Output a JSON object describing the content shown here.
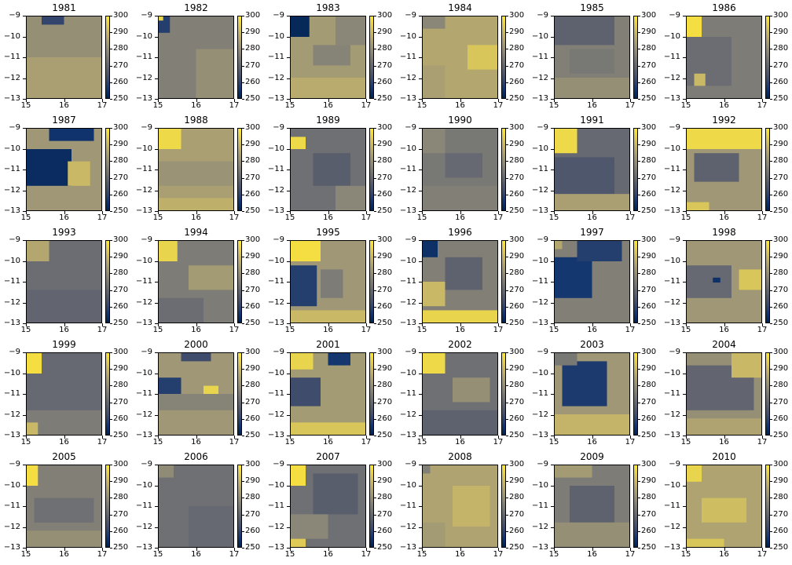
{
  "chart_data": {
    "type": "heatmap",
    "colormap": "cividis",
    "panel_grid": {
      "rows": 5,
      "cols": 6
    },
    "xlim": [
      15,
      17
    ],
    "ylim": [
      -13,
      -9
    ],
    "x_ticks": [
      "15",
      "16",
      "17"
    ],
    "y_ticks": [
      "−9",
      "−10",
      "−11",
      "−12",
      "−13"
    ],
    "colorbar": {
      "range": [
        250,
        300
      ],
      "ticks": [
        "300",
        "290",
        "280",
        "270",
        "260",
        "250"
      ]
    },
    "panels": [
      {
        "year": "1981",
        "base": 280,
        "patches": [
          [
            0.2,
            0.0,
            0.3,
            0.1,
            260
          ],
          [
            0.0,
            0.5,
            1.0,
            0.5,
            284
          ]
        ]
      },
      {
        "year": "1982",
        "base": 276,
        "patches": [
          [
            0.0,
            0.0,
            0.15,
            0.2,
            258
          ],
          [
            0.0,
            0.0,
            0.06,
            0.05,
            296
          ],
          [
            0.5,
            0.4,
            0.5,
            0.6,
            280
          ]
        ]
      },
      {
        "year": "1983",
        "base": 283,
        "patches": [
          [
            0.0,
            0.0,
            0.25,
            0.25,
            252
          ],
          [
            0.6,
            0.0,
            0.4,
            0.35,
            278
          ],
          [
            0.3,
            0.35,
            0.5,
            0.25,
            277
          ],
          [
            0.0,
            0.75,
            1.0,
            0.25,
            287
          ]
        ]
      },
      {
        "year": "1984",
        "base": 286,
        "patches": [
          [
            0.0,
            0.0,
            0.3,
            0.15,
            278
          ],
          [
            0.6,
            0.35,
            0.4,
            0.3,
            293
          ],
          [
            0.0,
            0.6,
            0.3,
            0.4,
            284
          ]
        ]
      },
      {
        "year": "1985",
        "base": 276,
        "patches": [
          [
            0.0,
            0.0,
            0.8,
            0.35,
            268
          ],
          [
            0.2,
            0.4,
            0.6,
            0.3,
            274
          ],
          [
            0.0,
            0.75,
            1.0,
            0.25,
            280
          ]
        ]
      },
      {
        "year": "1986",
        "base": 275,
        "patches": [
          [
            0.0,
            0.0,
            0.2,
            0.25,
            298
          ],
          [
            0.0,
            0.25,
            0.6,
            0.6,
            271
          ],
          [
            0.1,
            0.7,
            0.15,
            0.15,
            290
          ]
        ]
      },
      {
        "year": "1987",
        "base": 282,
        "patches": [
          [
            0.0,
            0.25,
            0.6,
            0.45,
            253
          ],
          [
            0.3,
            0.0,
            0.6,
            0.15,
            255
          ],
          [
            0.55,
            0.4,
            0.3,
            0.3,
            290
          ]
        ]
      },
      {
        "year": "1988",
        "base": 284,
        "patches": [
          [
            0.0,
            0.0,
            0.3,
            0.25,
            297
          ],
          [
            0.0,
            0.4,
            1.0,
            0.3,
            281
          ],
          [
            0.0,
            0.85,
            1.0,
            0.15,
            288
          ]
        ]
      },
      {
        "year": "1989",
        "base": 272,
        "patches": [
          [
            0.0,
            0.1,
            0.2,
            0.15,
            297
          ],
          [
            0.3,
            0.3,
            0.5,
            0.4,
            267
          ],
          [
            0.6,
            0.7,
            0.4,
            0.3,
            278
          ]
        ]
      },
      {
        "year": "1990",
        "base": 274,
        "patches": [
          [
            0.0,
            0.0,
            0.3,
            0.3,
            278
          ],
          [
            0.3,
            0.3,
            0.5,
            0.3,
            270
          ],
          [
            0.0,
            0.7,
            1.0,
            0.3,
            276
          ]
        ]
      },
      {
        "year": "1991",
        "base": 270,
        "patches": [
          [
            0.0,
            0.0,
            0.3,
            0.3,
            297
          ],
          [
            0.0,
            0.35,
            0.8,
            0.45,
            265
          ],
          [
            0.0,
            0.8,
            1.0,
            0.2,
            284
          ]
        ]
      },
      {
        "year": "1992",
        "base": 282,
        "patches": [
          [
            0.0,
            0.0,
            1.0,
            0.25,
            297
          ],
          [
            0.1,
            0.3,
            0.6,
            0.35,
            268
          ],
          [
            0.0,
            0.9,
            0.3,
            0.1,
            293
          ]
        ]
      },
      {
        "year": "1993",
        "base": 271,
        "patches": [
          [
            0.0,
            0.0,
            0.3,
            0.25,
            286
          ],
          [
            0.0,
            0.6,
            1.0,
            0.4,
            269
          ]
        ]
      },
      {
        "year": "1994",
        "base": 275,
        "patches": [
          [
            0.0,
            0.0,
            0.25,
            0.25,
            296
          ],
          [
            0.4,
            0.3,
            0.6,
            0.3,
            283
          ],
          [
            0.0,
            0.7,
            0.6,
            0.3,
            271
          ]
        ]
      },
      {
        "year": "1995",
        "base": 282,
        "patches": [
          [
            0.0,
            0.0,
            0.4,
            0.25,
            298
          ],
          [
            0.0,
            0.3,
            0.35,
            0.5,
            258
          ],
          [
            0.4,
            0.35,
            0.3,
            0.35,
            275
          ],
          [
            0.0,
            0.85,
            1.0,
            0.15,
            290
          ]
        ]
      },
      {
        "year": "1996",
        "base": 276,
        "patches": [
          [
            0.0,
            0.0,
            0.2,
            0.2,
            254
          ],
          [
            0.0,
            0.5,
            0.3,
            0.3,
            290
          ],
          [
            0.0,
            0.85,
            1.0,
            0.15,
            296
          ],
          [
            0.3,
            0.2,
            0.5,
            0.4,
            268
          ]
        ]
      },
      {
        "year": "1997",
        "base": 276,
        "patches": [
          [
            0.0,
            0.2,
            0.5,
            0.5,
            256
          ],
          [
            0.3,
            0.0,
            0.6,
            0.25,
            258
          ],
          [
            0.0,
            0.0,
            0.1,
            0.1,
            286
          ]
        ]
      },
      {
        "year": "1998",
        "base": 282,
        "patches": [
          [
            0.0,
            0.3,
            0.6,
            0.4,
            270
          ],
          [
            0.7,
            0.35,
            0.3,
            0.25,
            293
          ],
          [
            0.35,
            0.45,
            0.1,
            0.06,
            254
          ]
        ]
      },
      {
        "year": "1999",
        "base": 270,
        "patches": [
          [
            0.0,
            0.0,
            0.2,
            0.25,
            298
          ],
          [
            0.0,
            0.7,
            1.0,
            0.3,
            275
          ],
          [
            0.0,
            0.85,
            0.15,
            0.15,
            290
          ]
        ]
      },
      {
        "year": "2000",
        "base": 282,
        "patches": [
          [
            0.0,
            0.3,
            0.3,
            0.2,
            258
          ],
          [
            0.3,
            0.0,
            0.4,
            0.1,
            262
          ],
          [
            0.6,
            0.4,
            0.2,
            0.15,
            296
          ],
          [
            0.0,
            0.5,
            1.0,
            0.2,
            277
          ]
        ]
      },
      {
        "year": "2001",
        "base": 283,
        "patches": [
          [
            0.0,
            0.3,
            0.4,
            0.35,
            262
          ],
          [
            0.0,
            0.0,
            0.3,
            0.2,
            296
          ],
          [
            0.5,
            0.0,
            0.3,
            0.15,
            256
          ],
          [
            0.0,
            0.85,
            1.0,
            0.15,
            293
          ]
        ]
      },
      {
        "year": "2002",
        "base": 272,
        "patches": [
          [
            0.0,
            0.0,
            0.3,
            0.25,
            297
          ],
          [
            0.4,
            0.3,
            0.5,
            0.3,
            280
          ],
          [
            0.0,
            0.7,
            1.0,
            0.3,
            268
          ]
        ]
      },
      {
        "year": "2003",
        "base": 282,
        "patches": [
          [
            0.1,
            0.1,
            0.6,
            0.55,
            257
          ],
          [
            0.0,
            0.0,
            0.3,
            0.15,
            274
          ],
          [
            0.0,
            0.75,
            1.0,
            0.25,
            289
          ]
        ]
      },
      {
        "year": "2004",
        "base": 280,
        "patches": [
          [
            0.0,
            0.15,
            0.9,
            0.55,
            269
          ],
          [
            0.6,
            0.0,
            0.4,
            0.3,
            290
          ],
          [
            0.0,
            0.8,
            1.0,
            0.2,
            285
          ]
        ]
      },
      {
        "year": "2005",
        "base": 276,
        "patches": [
          [
            0.0,
            0.0,
            0.15,
            0.25,
            298
          ],
          [
            0.1,
            0.4,
            0.8,
            0.3,
            272
          ],
          [
            0.0,
            0.8,
            1.0,
            0.2,
            280
          ]
        ]
      },
      {
        "year": "2006",
        "base": 272,
        "patches": [
          [
            0.0,
            0.0,
            0.2,
            0.15,
            279
          ],
          [
            0.4,
            0.5,
            0.6,
            0.5,
            270
          ]
        ]
      },
      {
        "year": "2007",
        "base": 272,
        "patches": [
          [
            0.0,
            0.0,
            0.2,
            0.25,
            298
          ],
          [
            0.3,
            0.1,
            0.6,
            0.5,
            267
          ],
          [
            0.0,
            0.6,
            0.5,
            0.3,
            278
          ],
          [
            0.0,
            0.9,
            0.2,
            0.1,
            294
          ]
        ]
      },
      {
        "year": "2008",
        "base": 285,
        "patches": [
          [
            0.0,
            0.0,
            0.1,
            0.1,
            276
          ],
          [
            0.4,
            0.25,
            0.5,
            0.5,
            289
          ],
          [
            0.0,
            0.7,
            0.3,
            0.3,
            283
          ]
        ]
      },
      {
        "year": "2009",
        "base": 275,
        "patches": [
          [
            0.0,
            0.0,
            0.5,
            0.15,
            283
          ],
          [
            0.2,
            0.25,
            0.6,
            0.45,
            268
          ],
          [
            0.0,
            0.7,
            1.0,
            0.3,
            280
          ]
        ]
      },
      {
        "year": "2010",
        "base": 285,
        "patches": [
          [
            0.0,
            0.0,
            0.2,
            0.2,
            296
          ],
          [
            0.2,
            0.4,
            0.6,
            0.3,
            291
          ],
          [
            0.0,
            0.9,
            0.5,
            0.1,
            293
          ]
        ]
      }
    ]
  },
  "colors": {
    "cividis_stops": [
      "#00224e",
      "#123570",
      "#3b496c",
      "#575d6d",
      "#707173",
      "#8a8678",
      "#a59c74",
      "#c3b369",
      "#e1cc55",
      "#fee838"
    ]
  }
}
